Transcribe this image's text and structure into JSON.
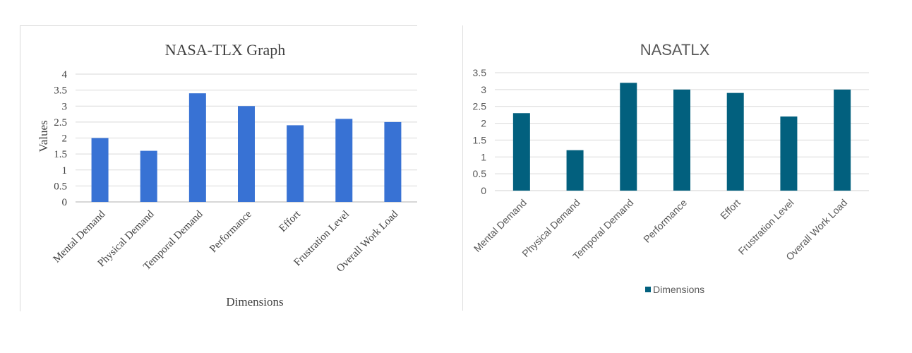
{
  "chart_data": [
    {
      "type": "bar",
      "title": "NASA-TLX Graph",
      "xlabel": "Dimensions",
      "ylabel": "Values",
      "categories": [
        "Mental Demand",
        "Physical Demand",
        "Temporal Demand",
        "Performance",
        "Effort",
        "Frustration Level",
        "Overall Work Load"
      ],
      "values": [
        2,
        1.6,
        3.4,
        3,
        2.4,
        2.6,
        2.5
      ],
      "ylim": [
        0,
        4
      ],
      "yticks": [
        "0",
        "0.5",
        "1",
        "1.5",
        "2",
        "2.5",
        "3",
        "3.5",
        "4"
      ],
      "grid": true,
      "color": "#3872d4"
    },
    {
      "type": "bar",
      "title": "NASATLX",
      "xlabel": "",
      "ylabel": "",
      "categories": [
        "Mental Demand",
        "Physical Demand",
        "Temporal Demand",
        "Performance",
        "Effort",
        "Frustration Level",
        "Overall Work Load"
      ],
      "series": [
        {
          "name": "Dimensions",
          "values": [
            2.3,
            1.2,
            3.2,
            3,
            2.9,
            2.2,
            3
          ]
        }
      ],
      "ylim": [
        0,
        3.5
      ],
      "yticks": [
        "0",
        "0.5",
        "1",
        "1.5",
        "2",
        "2.5",
        "3",
        "3.5"
      ],
      "grid": true,
      "legend": "bottom",
      "color": "#02607e"
    }
  ]
}
